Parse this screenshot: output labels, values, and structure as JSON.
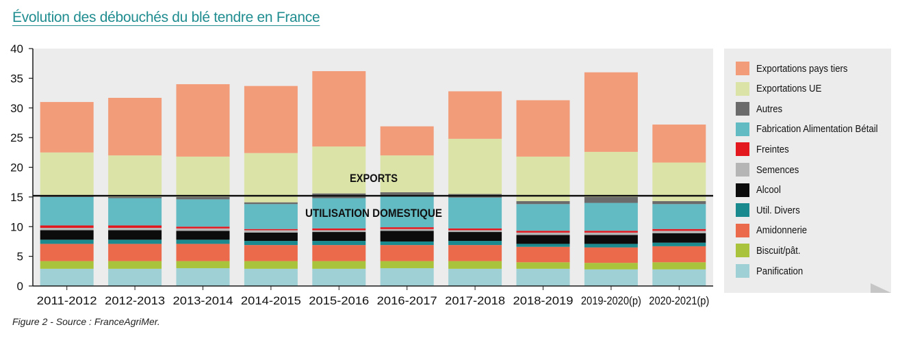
{
  "chart_data": {
    "type": "bar",
    "stacked": true,
    "title": "Évolution des débouchés du blé tendre en France",
    "caption": "Figure 2 - Source : FranceAgriMer.",
    "categories": [
      "2011-2012",
      "2012-2013",
      "2013-2014",
      "2014-2015",
      "2015-2016",
      "2016-2017",
      "2017-2018",
      "2018-2019",
      "2019-2020(p)",
      "2020-2021(p)"
    ],
    "ylim": [
      0,
      40
    ],
    "yticks": [
      0,
      5,
      10,
      15,
      20,
      25,
      30,
      35,
      40
    ],
    "grid": false,
    "legend_position": "right",
    "series": [
      {
        "name": "Panification",
        "color": "#9ed0d6",
        "values": [
          2.9,
          2.9,
          3.0,
          2.9,
          2.9,
          3.0,
          2.9,
          2.9,
          2.8,
          2.8
        ]
      },
      {
        "name": "Biscuit/pât.",
        "color": "#a9c43c",
        "values": [
          1.3,
          1.3,
          1.2,
          1.3,
          1.3,
          1.2,
          1.3,
          1.1,
          1.1,
          1.2
        ]
      },
      {
        "name": "Amidonnerie",
        "color": "#ec6a4c",
        "values": [
          2.9,
          2.9,
          2.9,
          2.7,
          2.7,
          2.7,
          2.7,
          2.6,
          2.6,
          2.7
        ]
      },
      {
        "name": "Util. Divers",
        "color": "#1a8a8e",
        "values": [
          0.7,
          0.7,
          0.7,
          0.7,
          0.7,
          0.6,
          0.7,
          0.5,
          0.6,
          0.6
        ]
      },
      {
        "name": "Alcool",
        "color": "#0c0c0c",
        "values": [
          1.6,
          1.6,
          1.5,
          1.4,
          1.5,
          1.8,
          1.5,
          1.5,
          1.5,
          1.6
        ]
      },
      {
        "name": "Semences",
        "color": "#b5b5b5",
        "values": [
          0.4,
          0.4,
          0.4,
          0.4,
          0.3,
          0.3,
          0.3,
          0.4,
          0.4,
          0.4
        ]
      },
      {
        "name": "Freintes",
        "color": "#e3171e",
        "values": [
          0.4,
          0.4,
          0.3,
          0.2,
          0.3,
          0.3,
          0.3,
          0.3,
          0.3,
          0.3
        ]
      },
      {
        "name": "Fabrication Alimentation Bétail",
        "color": "#62bac2",
        "values": [
          4.8,
          4.6,
          4.6,
          4.2,
          5.1,
          5.4,
          5.2,
          4.5,
          4.7,
          4.2
        ]
      },
      {
        "name": "Autres",
        "color": "#6b6b6b",
        "values": [
          0.2,
          0.2,
          0.4,
          0.3,
          0.8,
          0.5,
          0.6,
          0.5,
          1.0,
          0.5
        ]
      },
      {
        "name": "Exportations UE",
        "color": "#dbe3a6",
        "values": [
          7.3,
          7.0,
          6.8,
          8.3,
          7.9,
          6.2,
          9.3,
          7.5,
          7.6,
          6.5
        ]
      },
      {
        "name": "Exportations pays tiers",
        "color": "#f39c7a",
        "values": [
          8.5,
          9.7,
          12.2,
          11.3,
          12.7,
          4.9,
          8.0,
          9.5,
          13.4,
          6.4
        ]
      }
    ],
    "annotations": {
      "threshold": 15.2,
      "above_label": "EXPORTS",
      "below_label": "UTILISATION DOMESTIQUE"
    }
  }
}
